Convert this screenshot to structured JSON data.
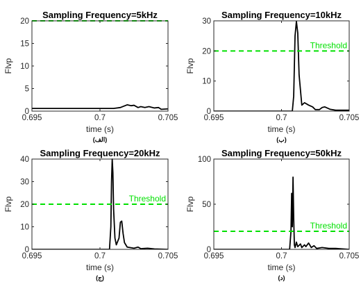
{
  "chart_data": [
    {
      "type": "line",
      "title": "Sampling Frequency=5kHz",
      "subtitle": "(الف)",
      "xlabel": "time (s)",
      "ylabel": "Flvp",
      "xlim": [
        0.695,
        0.705
      ],
      "ylim": [
        0,
        20
      ],
      "xticks": [
        0.695,
        0.7,
        0.705
      ],
      "xtick_labels": [
        "0.695",
        "0.7",
        "0.705"
      ],
      "yticks": [
        0,
        5,
        10,
        15,
        20
      ],
      "ytick_labels": [
        "0",
        "5",
        "10",
        "15",
        "20"
      ],
      "threshold": {
        "value": 20,
        "label": "",
        "color": "#00e000"
      },
      "signal_color": "#000000",
      "series": [
        {
          "x": [
            0.695,
            0.6995,
            0.7,
            0.7005,
            0.701,
            0.7015,
            0.702,
            0.7023,
            0.7025,
            0.7028,
            0.703,
            0.7033,
            0.7036,
            0.704,
            0.7043,
            0.7045,
            0.705
          ],
          "y": [
            0.6,
            0.6,
            0.6,
            0.6,
            0.6,
            0.8,
            1.4,
            1.2,
            1.3,
            0.8,
            1.0,
            0.8,
            1.0,
            0.7,
            0.8,
            0.4,
            0.5
          ]
        }
      ]
    },
    {
      "type": "line",
      "title": "Sampling Frequency=10kHz",
      "subtitle": "(ب)",
      "xlabel": "time (s)",
      "ylabel": "Flvp",
      "xlim": [
        0.695,
        0.705
      ],
      "ylim": [
        0,
        30
      ],
      "xticks": [
        0.695,
        0.7,
        0.705
      ],
      "xtick_labels": [
        "0.695",
        "0.7",
        "0.705"
      ],
      "yticks": [
        0,
        10,
        20,
        30
      ],
      "ytick_labels": [
        "0",
        "10",
        "20",
        "30"
      ],
      "threshold": {
        "value": 20,
        "label": "Threshold",
        "color": "#00e000"
      },
      "signal_color": "#000000",
      "series": [
        {
          "x": [
            0.695,
            0.7,
            0.7008,
            0.7009,
            0.701,
            0.7011,
            0.7012,
            0.7013,
            0.7015,
            0.7017,
            0.702,
            0.7023,
            0.7025,
            0.7028,
            0.703,
            0.7032,
            0.7036,
            0.704,
            0.705
          ],
          "y": [
            0,
            0,
            0,
            5,
            25,
            29.8,
            26,
            12,
            2,
            2.8,
            2,
            1.4,
            0.5,
            0.5,
            1.2,
            1.4,
            0.6,
            0.3,
            0.3
          ]
        }
      ]
    },
    {
      "type": "line",
      "title": "Sampling Frequency=20kHz",
      "subtitle": "(ج)",
      "xlabel": "time (s)",
      "ylabel": "Flvp",
      "xlim": [
        0.695,
        0.705
      ],
      "ylim": [
        0,
        40
      ],
      "xticks": [
        0.695,
        0.7,
        0.705
      ],
      "xtick_labels": [
        "0.695",
        "0.7",
        "0.705"
      ],
      "yticks": [
        0,
        10,
        20,
        30,
        40
      ],
      "ytick_labels": [
        "0",
        "10",
        "20",
        "30",
        "40"
      ],
      "threshold": {
        "value": 20,
        "label": "Threshold",
        "color": "#00e000"
      },
      "signal_color": "#000000",
      "series": [
        {
          "x": [
            0.695,
            0.7,
            0.7007,
            0.7008,
            0.70085,
            0.7009,
            0.70095,
            0.701,
            0.7011,
            0.7012,
            0.7014,
            0.7015,
            0.7016,
            0.7017,
            0.7018,
            0.702,
            0.7022,
            0.7025,
            0.7028,
            0.703,
            0.7035,
            0.704,
            0.705
          ],
          "y": [
            0,
            0,
            0,
            10,
            30,
            40,
            34,
            18,
            5,
            2,
            5,
            12,
            12.5,
            7,
            3,
            1,
            0.8,
            0.5,
            1,
            0.3,
            0.5,
            0.2,
            0
          ]
        }
      ]
    },
    {
      "type": "line",
      "title": "Sampling Frequency=50kHz",
      "subtitle": "(د)",
      "xlabel": "time (s)",
      "ylabel": "Flvp",
      "xlim": [
        0.695,
        0.705
      ],
      "ylim": [
        0,
        100
      ],
      "xticks": [
        0.695,
        0.7,
        0.705
      ],
      "xtick_labels": [
        "0.695",
        "0.7",
        "0.705"
      ],
      "yticks": [
        0,
        50,
        100
      ],
      "ytick_labels": [
        "0",
        "50",
        "100"
      ],
      "threshold": {
        "value": 20,
        "label": "Threshold",
        "color": "#00e000"
      },
      "signal_color": "#000000",
      "series": [
        {
          "x": [
            0.695,
            0.7,
            0.7006,
            0.7007,
            0.70075,
            0.7008,
            0.70085,
            0.7009,
            0.70095,
            0.701,
            0.7011,
            0.7012,
            0.7014,
            0.7015,
            0.7017,
            0.7018,
            0.702,
            0.7022,
            0.7024,
            0.7026,
            0.703,
            0.7035,
            0.704,
            0.705
          ],
          "y": [
            0,
            0,
            0,
            20,
            62,
            25,
            80,
            35,
            5,
            2,
            8,
            3,
            6,
            2,
            5,
            3,
            7,
            2,
            4,
            1,
            2,
            1,
            1,
            0
          ]
        }
      ]
    }
  ]
}
